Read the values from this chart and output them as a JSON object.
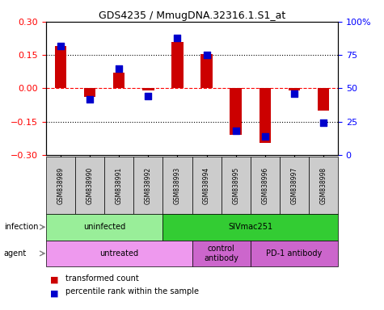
{
  "title": "GDS4235 / MmugDNA.32316.1.S1_at",
  "samples": [
    "GSM838989",
    "GSM838990",
    "GSM838991",
    "GSM838992",
    "GSM838993",
    "GSM838994",
    "GSM838995",
    "GSM838996",
    "GSM838997",
    "GSM838998"
  ],
  "red_values": [
    0.19,
    -0.04,
    0.07,
    -0.01,
    0.21,
    0.155,
    -0.21,
    -0.245,
    -0.01,
    -0.1
  ],
  "blue_values_pct": [
    82,
    42,
    65,
    44,
    88,
    75,
    18,
    14,
    46,
    24
  ],
  "ylim_left": [
    -0.3,
    0.3
  ],
  "ylim_right": [
    0,
    100
  ],
  "yticks_left": [
    -0.3,
    -0.15,
    0,
    0.15,
    0.3
  ],
  "yticks_right": [
    0,
    25,
    50,
    75,
    100
  ],
  "ytick_labels_right": [
    "0",
    "25",
    "50",
    "75",
    "100%"
  ],
  "dotted_lines": [
    -0.15,
    0.15
  ],
  "bar_color": "#cc0000",
  "dot_color": "#0000cc",
  "infection_groups": [
    {
      "label": "uninfected",
      "start": 0,
      "end": 4,
      "color": "#99ee99"
    },
    {
      "label": "SIVmac251",
      "start": 4,
      "end": 10,
      "color": "#33cc33"
    }
  ],
  "agent_groups": [
    {
      "label": "untreated",
      "start": 0,
      "end": 5,
      "color": "#ee99ee"
    },
    {
      "label": "control\nantibody",
      "start": 5,
      "end": 7,
      "color": "#cc66cc"
    },
    {
      "label": "PD-1 antibody",
      "start": 7,
      "end": 10,
      "color": "#cc66cc"
    }
  ],
  "infection_label": "infection",
  "agent_label": "agent",
  "legend_red": "transformed count",
  "legend_blue": "percentile rank within the sample",
  "bar_width": 0.4,
  "dot_size": 40
}
